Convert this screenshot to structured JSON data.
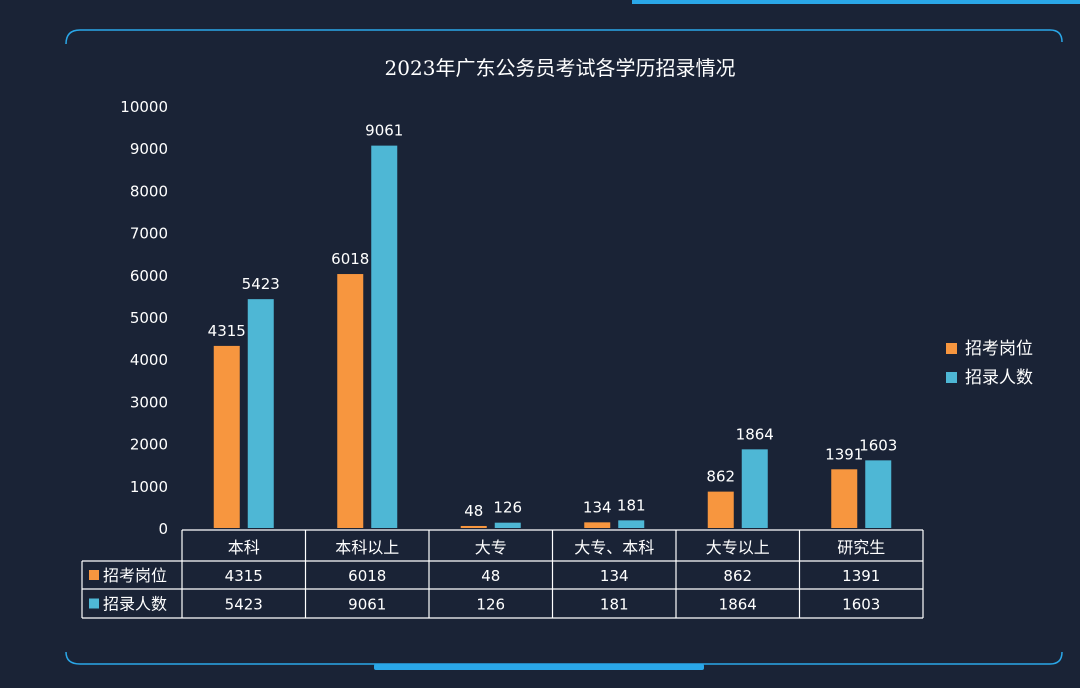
{
  "chart_data": {
    "type": "bar",
    "title": "2023年广东公务员考试各学历招录情况",
    "categories": [
      "本科",
      "本科以上",
      "大专",
      "大专、本科",
      "大专以上",
      "研究生"
    ],
    "series": [
      {
        "name": "招考岗位",
        "values": [
          4315,
          6018,
          48,
          134,
          862,
          1391
        ],
        "color": "#f7963f"
      },
      {
        "name": "招录人数",
        "values": [
          5423,
          9061,
          126,
          181,
          1864,
          1603
        ],
        "color": "#4eb7d5"
      }
    ],
    "ylim": [
      0,
      10000
    ],
    "yticks": [
      0,
      1000,
      2000,
      3000,
      4000,
      5000,
      6000,
      7000,
      8000,
      9000,
      10000
    ],
    "grid": false,
    "legend": "right",
    "data_table": true
  },
  "colors": {
    "background": "#1a2336",
    "frame": "#2aa7e8",
    "text": "#ffffff",
    "table_line": "#ffffff"
  }
}
